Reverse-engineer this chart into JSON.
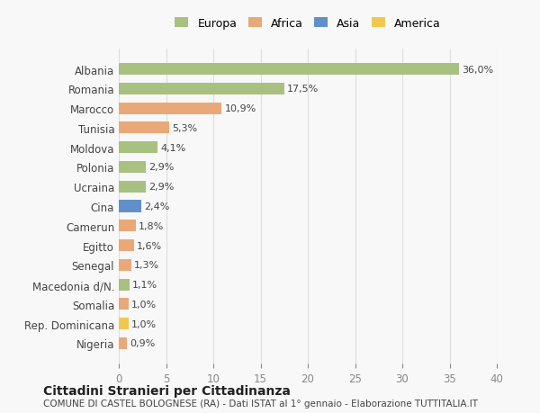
{
  "countries": [
    "Albania",
    "Romania",
    "Marocco",
    "Tunisia",
    "Moldova",
    "Polonia",
    "Ucraina",
    "Cina",
    "Camerun",
    "Egitto",
    "Senegal",
    "Macedonia d/N.",
    "Somalia",
    "Rep. Dominicana",
    "Nigeria"
  ],
  "values": [
    36.0,
    17.5,
    10.9,
    5.3,
    4.1,
    2.9,
    2.9,
    2.4,
    1.8,
    1.6,
    1.3,
    1.1,
    1.0,
    1.0,
    0.9
  ],
  "continents": [
    "Europa",
    "Europa",
    "Africa",
    "Africa",
    "Europa",
    "Europa",
    "Europa",
    "Asia",
    "Africa",
    "Africa",
    "Africa",
    "Europa",
    "Africa",
    "America",
    "Africa"
  ],
  "labels": [
    "36,0%",
    "17,5%",
    "10,9%",
    "5,3%",
    "4,1%",
    "2,9%",
    "2,9%",
    "2,4%",
    "1,8%",
    "1,6%",
    "1,3%",
    "1,1%",
    "1,0%",
    "1,0%",
    "0,9%"
  ],
  "colors": {
    "Europa": "#a8c080",
    "Africa": "#e8a878",
    "Asia": "#6090c8",
    "America": "#f0c850"
  },
  "legend_order": [
    "Europa",
    "Africa",
    "Asia",
    "America"
  ],
  "title": "Cittadini Stranieri per Cittadinanza",
  "subtitle": "COMUNE DI CASTEL BOLOGNESE (RA) - Dati ISTAT al 1° gennaio - Elaborazione TUTTITALIA.IT",
  "xlim": [
    0,
    40
  ],
  "xticks": [
    0,
    5,
    10,
    15,
    20,
    25,
    30,
    35,
    40
  ],
  "background_color": "#f8f8f8"
}
